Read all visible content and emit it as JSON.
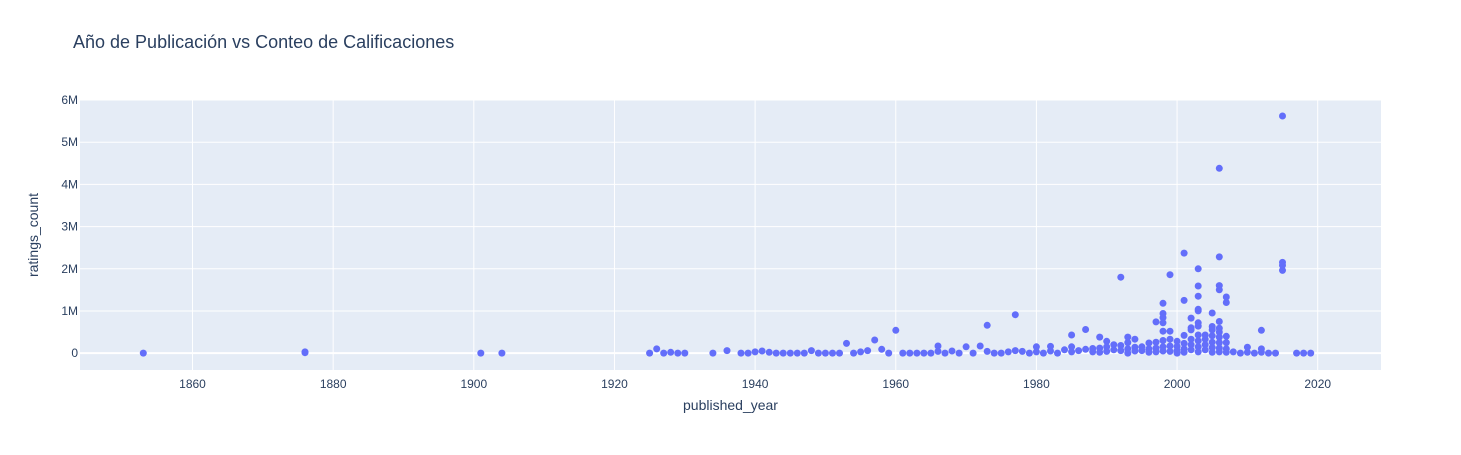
{
  "chart_data": {
    "type": "scatter",
    "title": "Año de Publicación vs Conteo de Calificaciones",
    "xlabel": "published_year",
    "ylabel": "ratings_count",
    "xlim": [
      1844,
      2029
    ],
    "ylim": [
      -400000,
      6000000
    ],
    "xticks": [
      1860,
      1880,
      1900,
      1920,
      1940,
      1960,
      1980,
      2000,
      2020
    ],
    "yticks": [
      0,
      1000000,
      2000000,
      3000000,
      4000000,
      5000000,
      6000000
    ],
    "ytick_labels": [
      "0",
      "1M",
      "2M",
      "3M",
      "4M",
      "5M",
      "6M"
    ],
    "grid": true,
    "colors": {
      "marker": "#636efa",
      "plot_bg": "#e5ecf6",
      "grid": "#ffffff",
      "text": "#2a3f5f"
    },
    "points": [
      [
        1853,
        0
      ],
      [
        1876,
        10000
      ],
      [
        1876,
        30000
      ],
      [
        1901,
        0
      ],
      [
        1904,
        0
      ],
      [
        1925,
        0
      ],
      [
        1926,
        100000
      ],
      [
        1927,
        0
      ],
      [
        1928,
        20000
      ],
      [
        1929,
        0
      ],
      [
        1930,
        0
      ],
      [
        1934,
        0
      ],
      [
        1936,
        60000
      ],
      [
        1938,
        0
      ],
      [
        1939,
        0
      ],
      [
        1940,
        30000
      ],
      [
        1941,
        50000
      ],
      [
        1942,
        20000
      ],
      [
        1943,
        0
      ],
      [
        1944,
        0
      ],
      [
        1945,
        0
      ],
      [
        1946,
        0
      ],
      [
        1947,
        0
      ],
      [
        1948,
        60000
      ],
      [
        1949,
        0
      ],
      [
        1950,
        0
      ],
      [
        1951,
        0
      ],
      [
        1952,
        0
      ],
      [
        1953,
        230000
      ],
      [
        1954,
        0
      ],
      [
        1955,
        30000
      ],
      [
        1956,
        60000
      ],
      [
        1957,
        310000
      ],
      [
        1958,
        90000
      ],
      [
        1959,
        0
      ],
      [
        1960,
        540000
      ],
      [
        1961,
        0
      ],
      [
        1962,
        0
      ],
      [
        1963,
        0
      ],
      [
        1964,
        0
      ],
      [
        1965,
        0
      ],
      [
        1966,
        170000
      ],
      [
        1966,
        40000
      ],
      [
        1967,
        0
      ],
      [
        1968,
        50000
      ],
      [
        1969,
        0
      ],
      [
        1970,
        150000
      ],
      [
        1971,
        0
      ],
      [
        1972,
        170000
      ],
      [
        1973,
        660000
      ],
      [
        1973,
        40000
      ],
      [
        1974,
        0
      ],
      [
        1975,
        0
      ],
      [
        1976,
        30000
      ],
      [
        1977,
        910000
      ],
      [
        1977,
        60000
      ],
      [
        1978,
        40000
      ],
      [
        1979,
        0
      ],
      [
        1980,
        150000
      ],
      [
        1980,
        30000
      ],
      [
        1981,
        0
      ],
      [
        1982,
        160000
      ],
      [
        1982,
        50000
      ],
      [
        1983,
        0
      ],
      [
        1984,
        80000
      ],
      [
        1985,
        430000
      ],
      [
        1985,
        150000
      ],
      [
        1985,
        30000
      ],
      [
        1986,
        60000
      ],
      [
        1987,
        560000
      ],
      [
        1987,
        90000
      ],
      [
        1988,
        110000
      ],
      [
        1988,
        30000
      ],
      [
        1989,
        380000
      ],
      [
        1989,
        120000
      ],
      [
        1989,
        20000
      ],
      [
        1990,
        280000
      ],
      [
        1990,
        150000
      ],
      [
        1990,
        40000
      ],
      [
        1991,
        200000
      ],
      [
        1991,
        80000
      ],
      [
        1992,
        1800000
      ],
      [
        1992,
        180000
      ],
      [
        1992,
        60000
      ],
      [
        1993,
        380000
      ],
      [
        1993,
        250000
      ],
      [
        1993,
        100000
      ],
      [
        1993,
        0
      ],
      [
        1994,
        330000
      ],
      [
        1994,
        140000
      ],
      [
        1994,
        50000
      ],
      [
        1995,
        150000
      ],
      [
        1995,
        60000
      ],
      [
        1996,
        240000
      ],
      [
        1996,
        100000
      ],
      [
        1996,
        20000
      ],
      [
        1997,
        740000
      ],
      [
        1997,
        260000
      ],
      [
        1997,
        120000
      ],
      [
        1997,
        30000
      ],
      [
        1998,
        1180000
      ],
      [
        1998,
        940000
      ],
      [
        1998,
        840000
      ],
      [
        1998,
        720000
      ],
      [
        1998,
        520000
      ],
      [
        1998,
        300000
      ],
      [
        1998,
        150000
      ],
      [
        1998,
        50000
      ],
      [
        1999,
        1860000
      ],
      [
        1999,
        520000
      ],
      [
        1999,
        330000
      ],
      [
        1999,
        170000
      ],
      [
        1999,
        40000
      ],
      [
        2000,
        280000
      ],
      [
        2000,
        160000
      ],
      [
        2000,
        60000
      ],
      [
        2000,
        0
      ],
      [
        2001,
        2370000
      ],
      [
        2001,
        1250000
      ],
      [
        2001,
        420000
      ],
      [
        2001,
        230000
      ],
      [
        2001,
        100000
      ],
      [
        2001,
        20000
      ],
      [
        2002,
        830000
      ],
      [
        2002,
        600000
      ],
      [
        2002,
        550000
      ],
      [
        2002,
        330000
      ],
      [
        2002,
        200000
      ],
      [
        2002,
        80000
      ],
      [
        2003,
        2000000
      ],
      [
        2003,
        1590000
      ],
      [
        2003,
        1350000
      ],
      [
        2003,
        1040000
      ],
      [
        2003,
        1000000
      ],
      [
        2003,
        720000
      ],
      [
        2003,
        640000
      ],
      [
        2003,
        430000
      ],
      [
        2003,
        290000
      ],
      [
        2003,
        150000
      ],
      [
        2003,
        30000
      ],
      [
        2004,
        430000
      ],
      [
        2004,
        330000
      ],
      [
        2004,
        200000
      ],
      [
        2004,
        80000
      ],
      [
        2005,
        950000
      ],
      [
        2005,
        630000
      ],
      [
        2005,
        550000
      ],
      [
        2005,
        410000
      ],
      [
        2005,
        260000
      ],
      [
        2005,
        130000
      ],
      [
        2005,
        20000
      ],
      [
        2006,
        4380000
      ],
      [
        2006,
        2280000
      ],
      [
        2006,
        1600000
      ],
      [
        2006,
        1500000
      ],
      [
        2006,
        750000
      ],
      [
        2006,
        590000
      ],
      [
        2006,
        500000
      ],
      [
        2006,
        380000
      ],
      [
        2006,
        250000
      ],
      [
        2006,
        120000
      ],
      [
        2006,
        30000
      ],
      [
        2007,
        1330000
      ],
      [
        2007,
        1200000
      ],
      [
        2007,
        400000
      ],
      [
        2007,
        250000
      ],
      [
        2007,
        100000
      ],
      [
        2007,
        20000
      ],
      [
        2008,
        30000
      ],
      [
        2009,
        0
      ],
      [
        2010,
        140000
      ],
      [
        2010,
        20000
      ],
      [
        2011,
        0
      ],
      [
        2012,
        540000
      ],
      [
        2012,
        100000
      ],
      [
        2012,
        20000
      ],
      [
        2013,
        0
      ],
      [
        2014,
        0
      ],
      [
        2015,
        5620000
      ],
      [
        2015,
        2150000
      ],
      [
        2015,
        2080000
      ],
      [
        2015,
        1960000
      ],
      [
        2017,
        0
      ],
      [
        2018,
        0
      ],
      [
        2019,
        0
      ]
    ]
  }
}
